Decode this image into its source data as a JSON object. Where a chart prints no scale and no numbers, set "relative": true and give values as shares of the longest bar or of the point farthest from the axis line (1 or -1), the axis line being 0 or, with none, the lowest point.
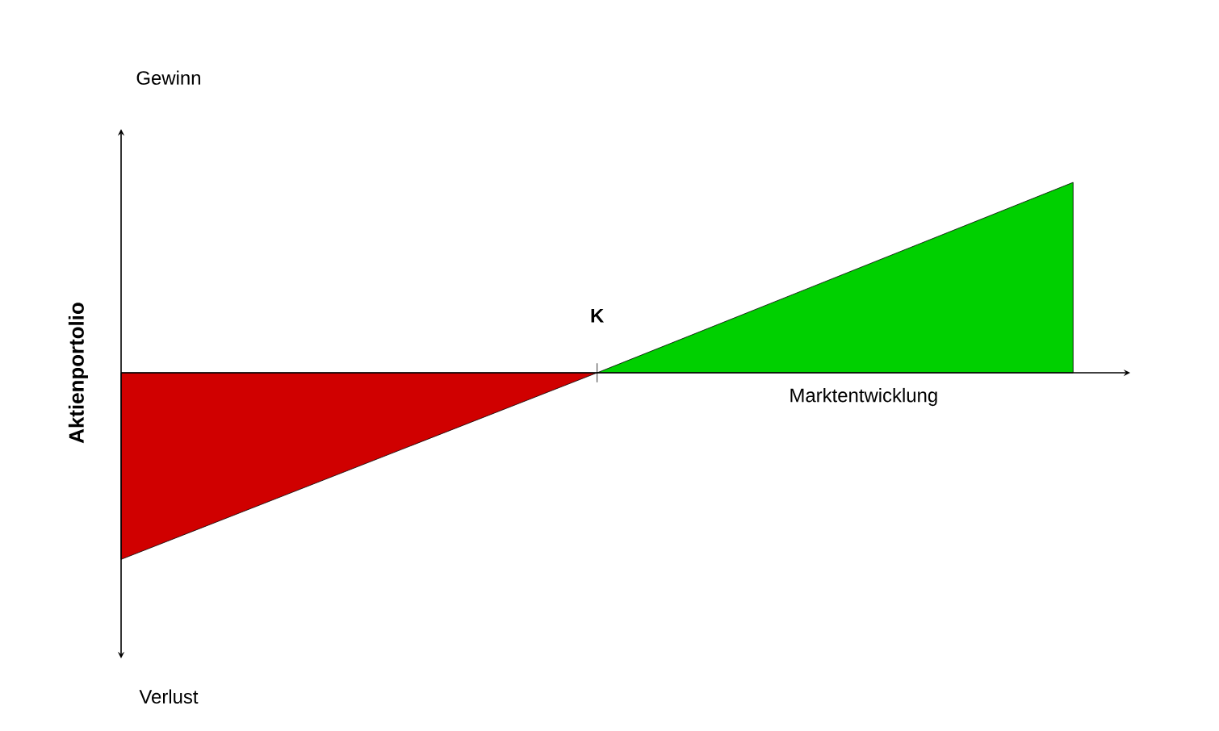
{
  "chart_data": {
    "type": "area",
    "relative": true,
    "xlabel": "Marktentwicklung",
    "ylabel": "Aktienportolio",
    "categories": [
      null,
      null,
      null
    ],
    "series": [
      {
        "color": "#d00000",
        "values": [
          -0.98,
          0,
          null
        ]
      },
      {
        "color": "#00d000",
        "values": [
          null,
          0,
          1
        ]
      }
    ],
    "annotations": [
      "Gewinn",
      "Verlust",
      "K"
    ]
  }
}
